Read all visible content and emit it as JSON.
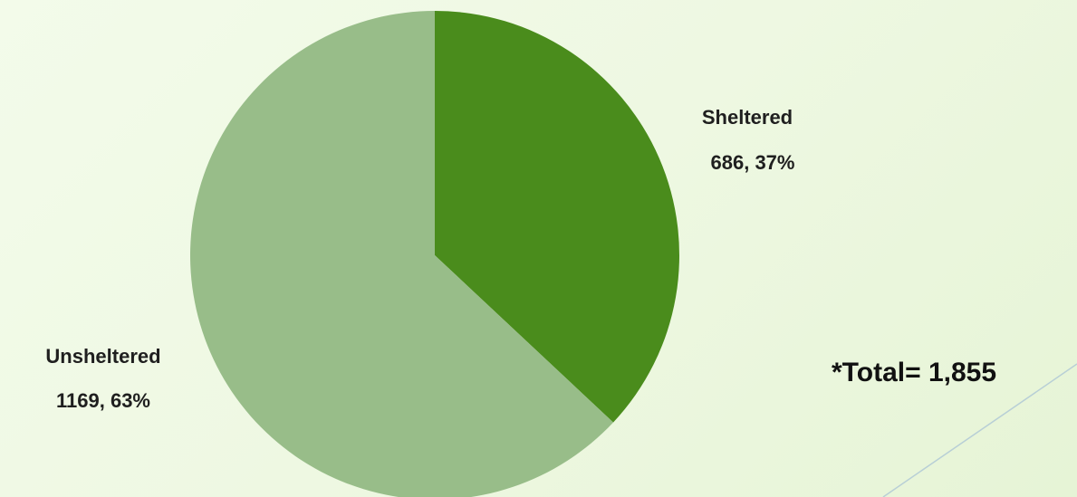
{
  "chart_data": {
    "type": "pie",
    "slices": [
      {
        "name": "Sheltered",
        "value": 686,
        "percent": "37%",
        "value_label": "686, 37%",
        "color": "#4a8c1c"
      },
      {
        "name": "Unsheltered",
        "value": 1169,
        "percent": "63%",
        "value_label": "1169, 63%",
        "color": "#98bd89"
      }
    ],
    "annotations": {
      "total": "*Total= 1,855"
    },
    "legend": "none"
  },
  "colors": {
    "decor_line": "#b8cfd6"
  }
}
